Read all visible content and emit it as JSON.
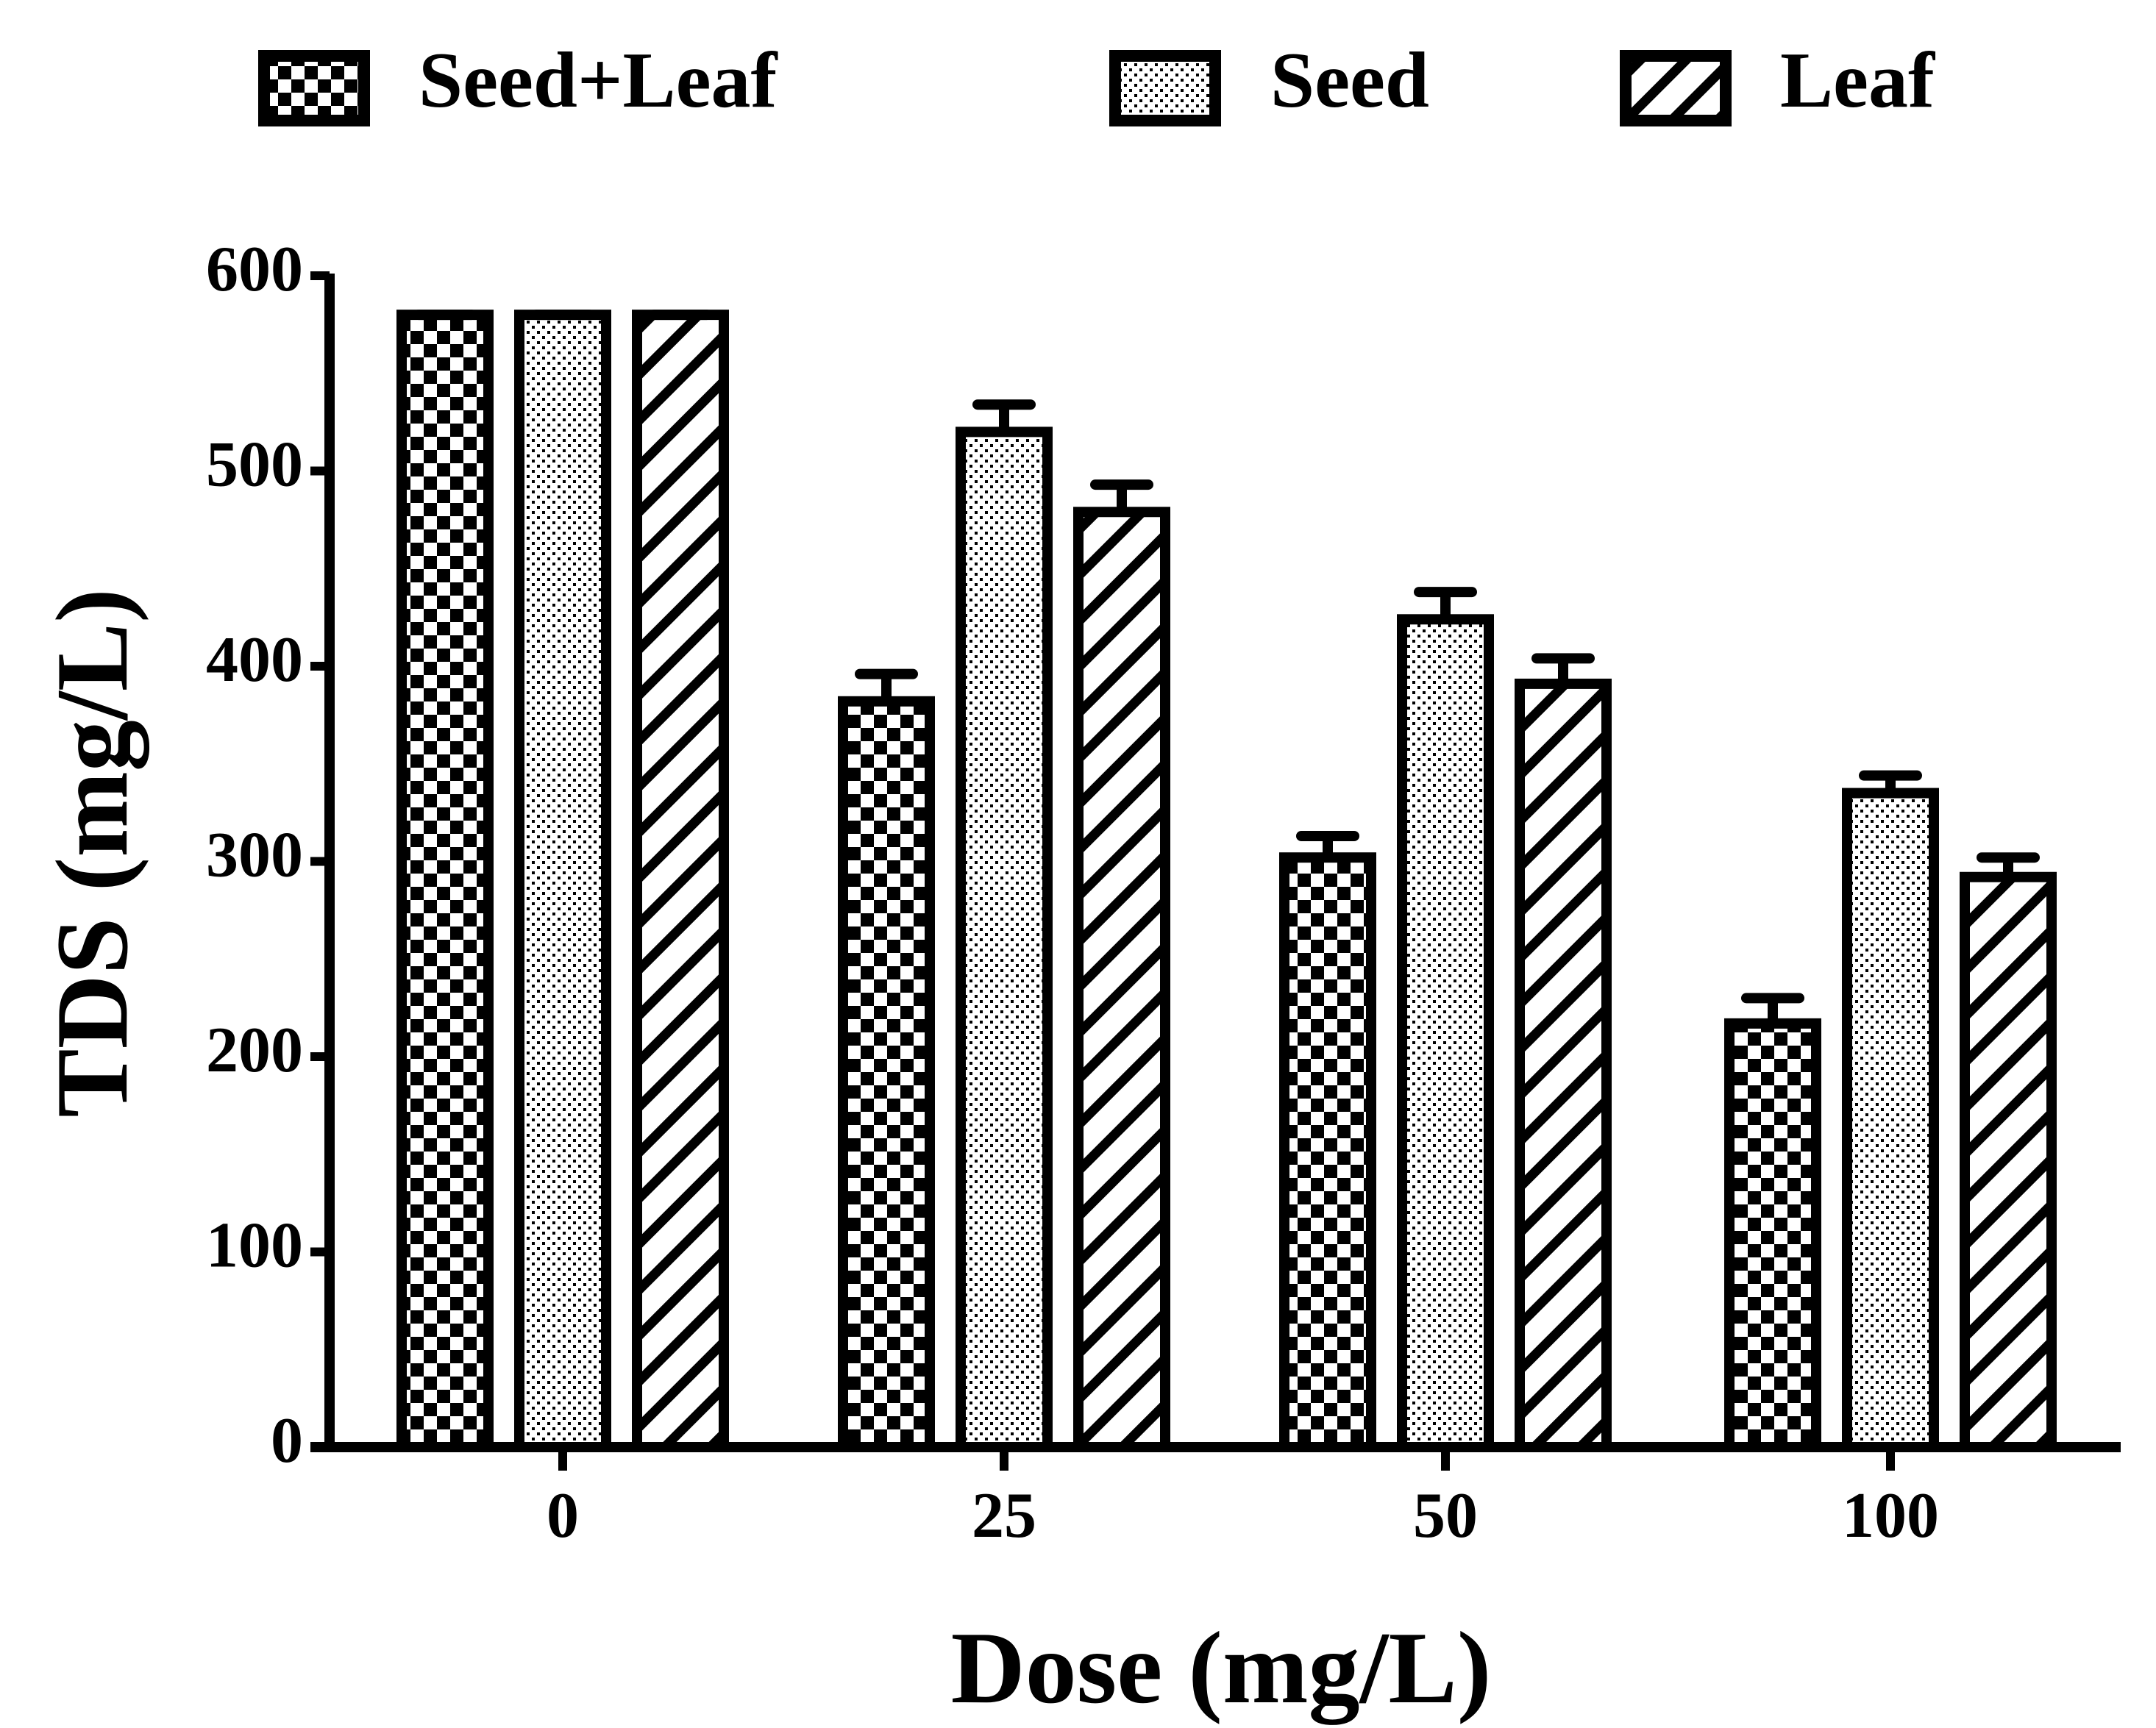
{
  "chart_data": {
    "type": "bar",
    "title": "",
    "xlabel": "Dose (mg/L)",
    "ylabel": "TDS (mg/L)",
    "ylim": [
      0,
      600
    ],
    "yticks": [
      0,
      100,
      200,
      300,
      400,
      500,
      600
    ],
    "categories": [
      "0",
      "25",
      "50",
      "100"
    ],
    "series": [
      {
        "name": "Seed+Leaf",
        "pattern": "checker",
        "values": [
          580,
          382,
          302,
          217
        ],
        "errors": [
          0,
          14,
          11,
          13
        ]
      },
      {
        "name": "Seed",
        "pattern": "dots",
        "values": [
          580,
          520,
          424,
          335
        ],
        "errors": [
          0,
          14,
          14,
          9
        ]
      },
      {
        "name": "Leaf",
        "pattern": "hatch",
        "values": [
          580,
          479,
          391,
          292
        ],
        "errors": [
          0,
          14,
          13,
          10
        ]
      }
    ],
    "legend_position": "top",
    "colors": {
      "stroke": "#000000",
      "background": "#ffffff"
    }
  }
}
